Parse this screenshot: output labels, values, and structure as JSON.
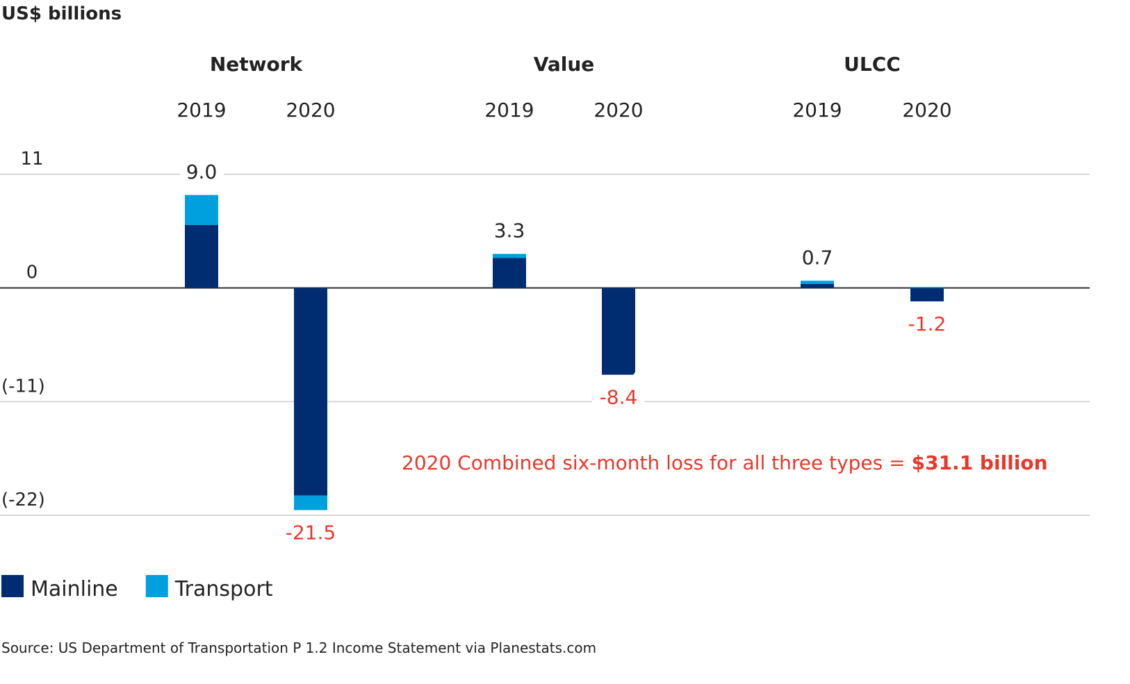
{
  "chart_data": {
    "type": "bar",
    "stacked": true,
    "y_label": "US$ billions",
    "groups": [
      "Network",
      "Value",
      "ULCC"
    ],
    "categories": [
      "2019",
      "2020",
      "2019",
      "2020",
      "2019",
      "2020"
    ],
    "series": [
      {
        "name": "Mainline",
        "color": "#002d72",
        "values": [
          6.1,
          -20.1,
          2.9,
          -8.4,
          0.4,
          -1.3
        ]
      },
      {
        "name": "Transport",
        "color": "#00a0df",
        "values": [
          2.9,
          -1.4,
          0.4,
          0,
          0.3,
          0.1
        ]
      }
    ],
    "totals": [
      9.0,
      -21.5,
      3.3,
      -8.4,
      0.7,
      -1.2
    ],
    "total_labels": [
      "9.0",
      "-21.5",
      "3.3",
      "-8.4",
      "0.7",
      "-1.2"
    ],
    "ylim": [
      -22,
      11
    ],
    "yticks": [
      11,
      0,
      {
        "value": -11,
        "label": "(-11)"
      },
      {
        "value": -22,
        "label": "(-22)"
      }
    ],
    "grid": true,
    "annotation": {
      "text": "2020 Combined six-month loss for all three types =",
      "highlight": "$31.1 billion",
      "color": "#e8372a"
    },
    "source": "Source: US Department of Transportation P 1.2 Income Statement via Planestats.com"
  }
}
